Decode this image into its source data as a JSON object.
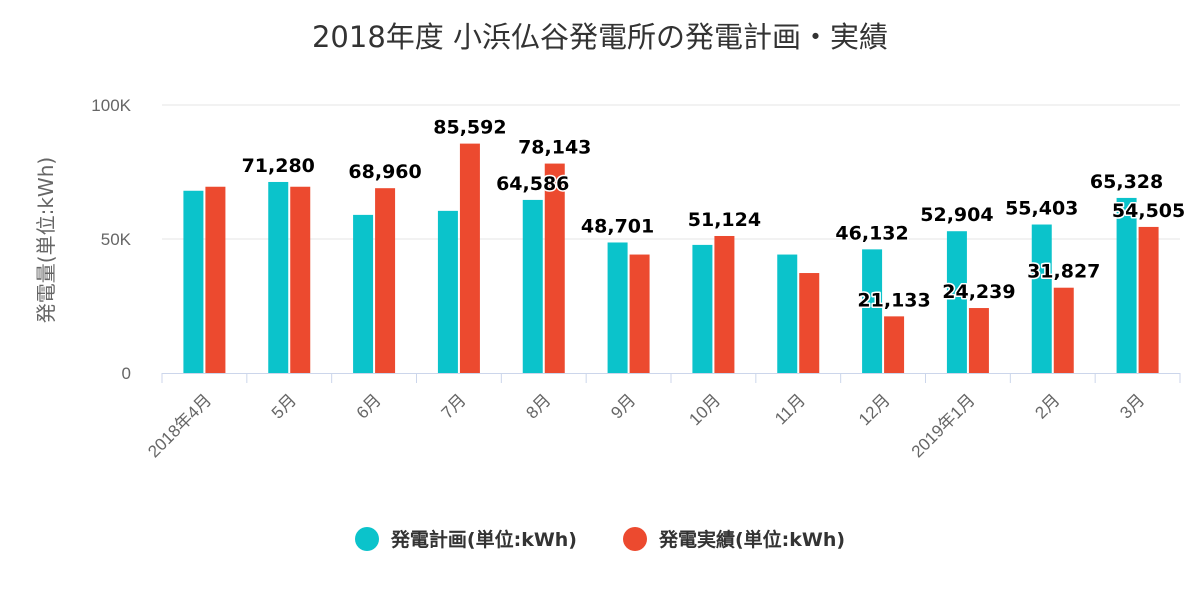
{
  "chart_data": {
    "type": "bar",
    "title": "2018年度 小浜仏谷発電所の発電計画・実績",
    "ylabel": "発電量(単位:kWh)",
    "xlabel": "",
    "ylim": [
      0,
      100000
    ],
    "yticks": [
      {
        "value": 0,
        "label": "0"
      },
      {
        "value": 50000,
        "label": "50K"
      },
      {
        "value": 100000,
        "label": "100K"
      }
    ],
    "grid": true,
    "legend_position": "bottom",
    "categories": [
      "2018年4月",
      "5月",
      "6月",
      "7月",
      "8月",
      "9月",
      "10月",
      "11月",
      "12月",
      "2019年1月",
      "2月",
      "3月"
    ],
    "series": [
      {
        "name": "発電計画(単位:kWh)",
        "color": "#0bc3cb",
        "values": [
          68000,
          71280,
          59000,
          60500,
          64586,
          48701,
          47800,
          44200,
          46132,
          52904,
          55403,
          65328
        ],
        "labels": [
          "",
          "71,280",
          "",
          "",
          "64,586",
          "48,701",
          "",
          "",
          "46,132",
          "52,904",
          "55,403",
          "65,328"
        ]
      },
      {
        "name": "発電実績(単位:kWh)",
        "color": "#ec4a2f",
        "values": [
          69500,
          69500,
          68960,
          85592,
          78143,
          44200,
          51124,
          37300,
          21133,
          24239,
          31827,
          54505
        ],
        "labels": [
          "",
          "",
          "68,960",
          "85,592",
          "78,143",
          "",
          "51,124",
          "",
          "21,133",
          "24,239",
          "31,827",
          "54,505"
        ]
      }
    ]
  }
}
